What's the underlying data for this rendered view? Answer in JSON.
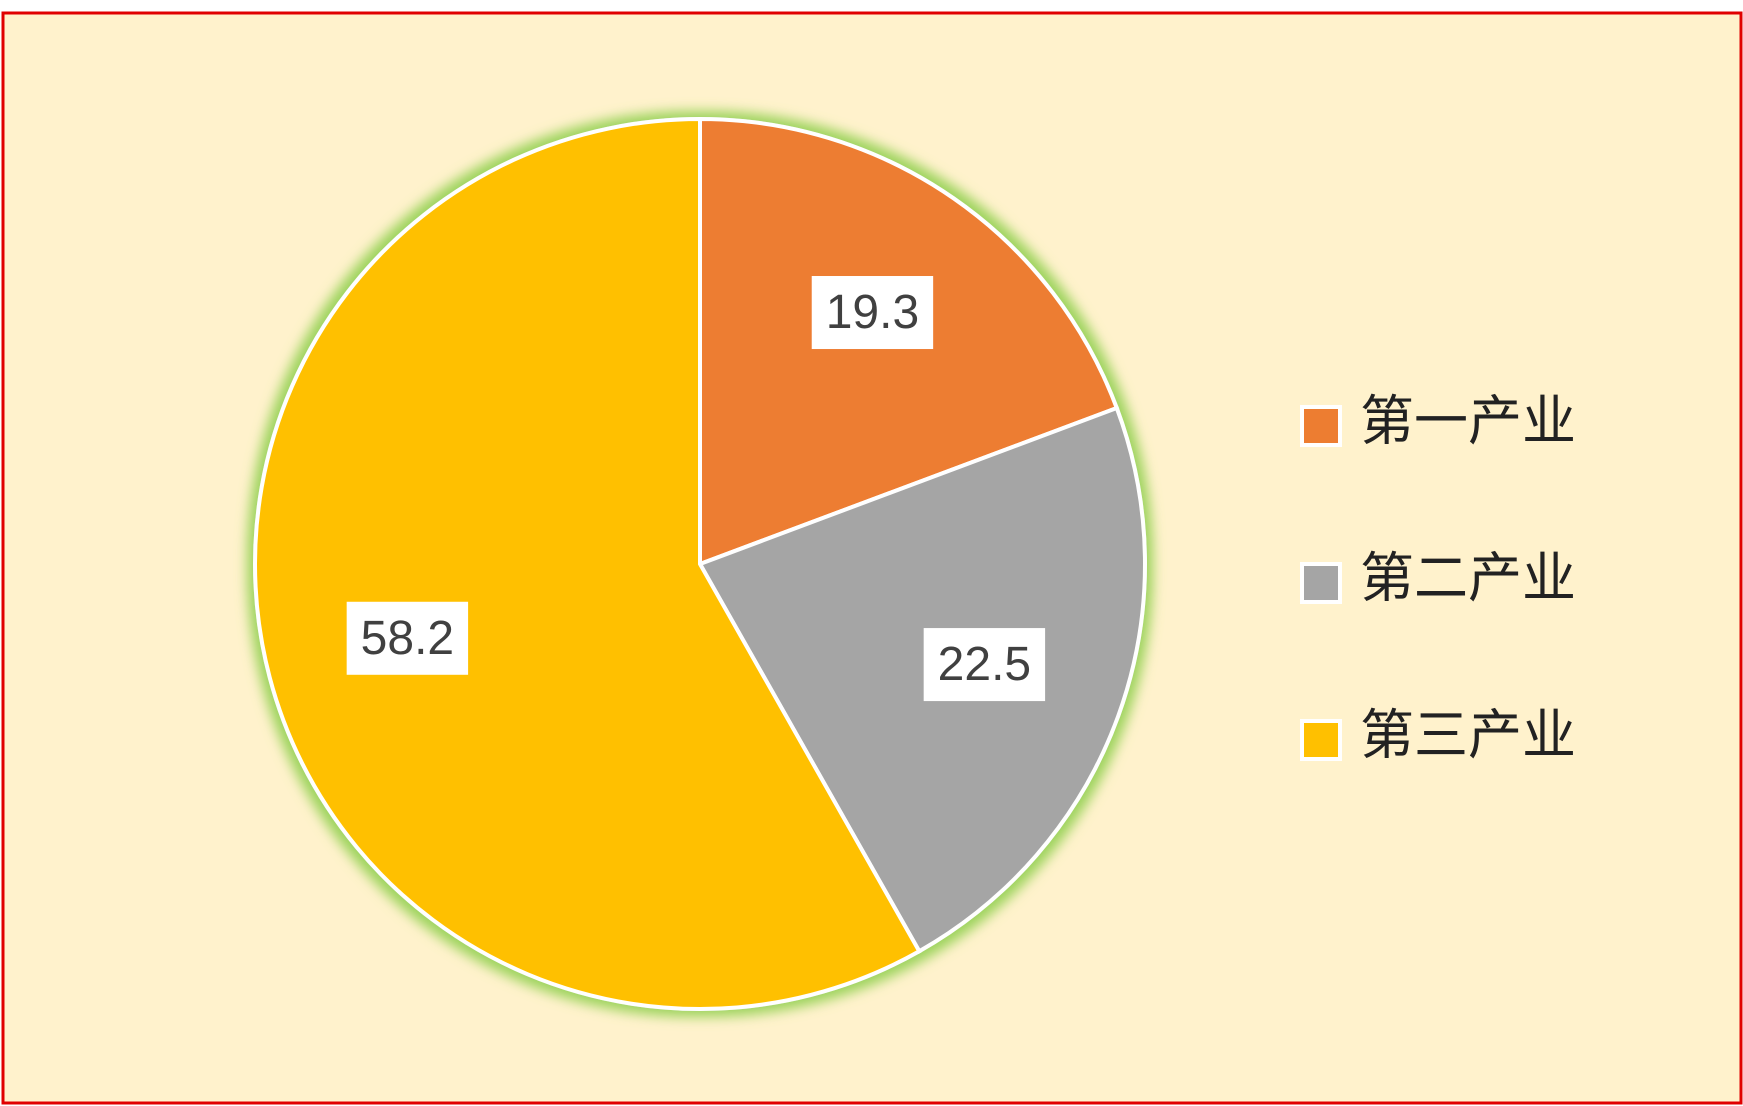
{
  "chart_data": {
    "type": "pie",
    "categories": [
      "第一产业",
      "第二产业",
      "第三产业"
    ],
    "values": [
      19.3,
      22.5,
      58.2
    ],
    "colors": [
      "#ED7D31",
      "#A5A5A5",
      "#FFC000"
    ],
    "legend": "right",
    "data_labels": true
  }
}
